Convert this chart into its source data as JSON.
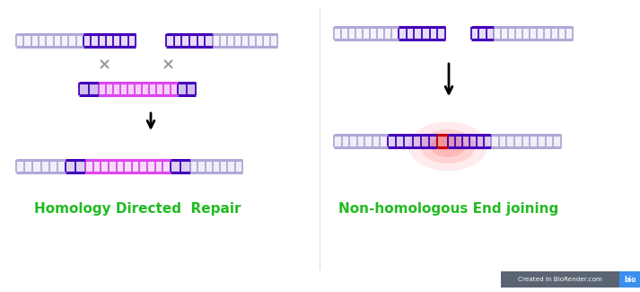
{
  "bg_color": "#ffffff",
  "fig_width": 7.13,
  "fig_height": 3.25,
  "dpi": 100,
  "lc": "#b0a8d8",
  "dc": "#4400bb",
  "mc": "#dd44ee",
  "rc": "#cc0000",
  "label_color": "#22bb22",
  "label1": "Homology Directed  Repair",
  "label2": "Non-homologous End joining",
  "biorender_bg": "#5a6472",
  "biorender_text": "Created in BioRender.com",
  "biorender_text_color": "#ffffff",
  "biorender_blue": "#3a8fef"
}
